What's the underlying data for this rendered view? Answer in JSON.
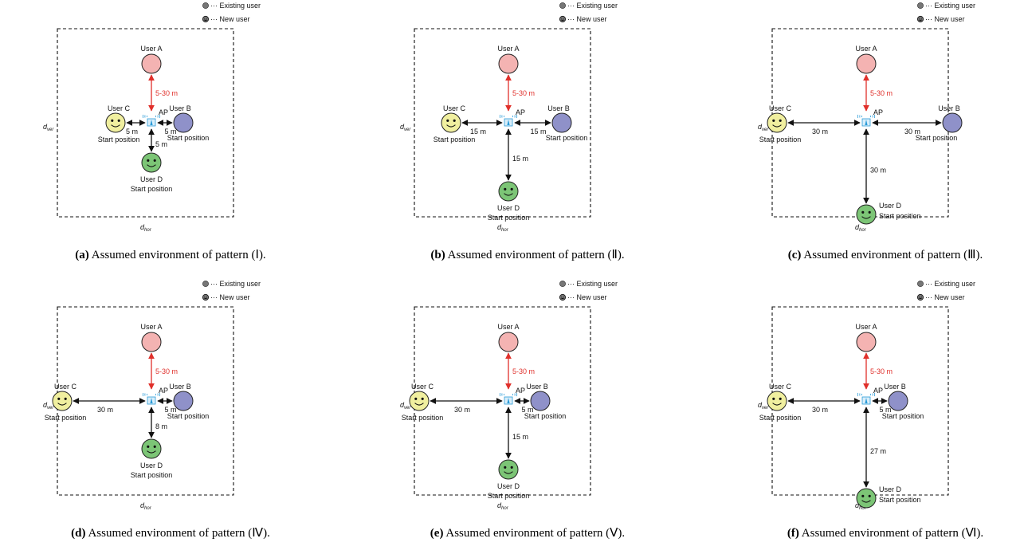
{
  "legend": {
    "existing": "Existing user",
    "new": "New user"
  },
  "labels": {
    "user_a": "User A",
    "user_b": "User B",
    "user_c": "User C",
    "user_d": "User D",
    "ap": "AP",
    "start": "Start position",
    "d_ver_main": "d",
    "d_ver_sub": "ver",
    "d_hor_main": "d",
    "d_hor_sub": "hor",
    "dist_a": "5-30 m"
  },
  "colors": {
    "user_a": "#f4b3b2",
    "user_b": "#8f91c9",
    "user_c": "#f0ef9f",
    "user_d": "#7cc576",
    "red": "#e0302b",
    "ap": "#2a9bd8"
  },
  "panels": [
    {
      "id": "a",
      "tag": "(a)",
      "caption": "Assumed environment of pattern (Ⅰ).",
      "dist_c": "5 m",
      "dist_b": "5 m",
      "dist_d": "5 m"
    },
    {
      "id": "b",
      "tag": "(b)",
      "caption": "Assumed environment of pattern (Ⅱ).",
      "dist_c": "15 m",
      "dist_b": "15 m",
      "dist_d": "15 m"
    },
    {
      "id": "c",
      "tag": "(c)",
      "caption": "Assumed environment of pattern (Ⅲ).",
      "dist_c": "30 m",
      "dist_b": "30 m",
      "dist_d": "30 m"
    },
    {
      "id": "d",
      "tag": "(d)",
      "caption": "Assumed environment of pattern (Ⅳ).",
      "dist_c": "30 m",
      "dist_b": "5 m",
      "dist_d": "8 m"
    },
    {
      "id": "e",
      "tag": "(e)",
      "caption": "Assumed environment of pattern (Ⅴ).",
      "dist_c": "30 m",
      "dist_b": "5 m",
      "dist_d": "15 m"
    },
    {
      "id": "f",
      "tag": "(f)",
      "caption": "Assumed environment of pattern (Ⅵ).",
      "dist_c": "30 m",
      "dist_b": "5 m",
      "dist_d": "27 m"
    }
  ]
}
